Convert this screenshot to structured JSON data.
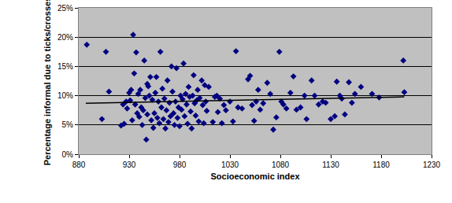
{
  "chart_data": {
    "type": "scatter",
    "xlabel": "Socioeconomic index",
    "ylabel": "Percentage informal due to ticks/crosses",
    "xlim": [
      880,
      1230
    ],
    "xticks": [
      880,
      930,
      980,
      1030,
      1080,
      1130,
      1180,
      1230
    ],
    "ylim": [
      0,
      25
    ],
    "yticks": [
      {
        "value": 0,
        "label": "0%"
      },
      {
        "value": 5,
        "label": "5%"
      },
      {
        "value": 10,
        "label": "10%"
      },
      {
        "value": 15,
        "label": "15%"
      },
      {
        "value": 20,
        "label": "20%"
      },
      {
        "value": 25,
        "label": "25%"
      }
    ],
    "grid": true,
    "series": [
      {
        "type": "scatter",
        "color": "#000080",
        "marker": "diamond",
        "x": [
          888,
          903,
          907,
          910,
          922,
          924,
          925,
          927,
          928,
          930,
          931,
          932,
          933,
          934,
          935,
          936,
          937,
          938,
          939,
          940,
          941,
          942,
          943,
          944,
          945,
          946,
          947,
          948,
          948,
          949,
          950,
          951,
          952,
          953,
          954,
          955,
          956,
          957,
          958,
          959,
          960,
          961,
          962,
          963,
          964,
          965,
          966,
          967,
          968,
          969,
          970,
          971,
          972,
          973,
          974,
          975,
          976,
          977,
          978,
          979,
          980,
          981,
          982,
          983,
          984,
          985,
          986,
          987,
          988,
          989,
          990,
          991,
          992,
          993,
          994,
          995,
          996,
          997,
          998,
          999,
          1000,
          1002,
          1003,
          1004,
          1005,
          1006,
          1007,
          1009,
          1013,
          1015,
          1017,
          1018,
          1020,
          1022,
          1024,
          1026,
          1030,
          1033,
          1036,
          1038,
          1042,
          1048,
          1050,
          1052,
          1054,
          1056,
          1058,
          1060,
          1063,
          1067,
          1070,
          1073,
          1076,
          1079,
          1081,
          1083,
          1086,
          1090,
          1093,
          1096,
          1100,
          1104,
          1106,
          1111,
          1114,
          1118,
          1122,
          1125,
          1130,
          1134,
          1136,
          1139,
          1141,
          1144,
          1148,
          1151,
          1154,
          1160,
          1171,
          1178,
          1202,
          1203
        ],
        "values": [
          18.7,
          6.0,
          17.5,
          10.7,
          4.9,
          8.5,
          5.2,
          9.0,
          7.8,
          10.5,
          9.2,
          11.0,
          5.8,
          20.4,
          13.8,
          8.5,
          17.4,
          7.0,
          10.3,
          6.4,
          11.0,
          8.0,
          5.0,
          7.5,
          16.0,
          9.6,
          2.5,
          12.0,
          6.8,
          11.6,
          10.0,
          13.2,
          5.8,
          9.3,
          4.5,
          7.0,
          10.5,
          13.2,
          6.2,
          9.0,
          5.3,
          17.5,
          8.0,
          11.2,
          6.0,
          9.5,
          4.4,
          7.5,
          12.6,
          5.5,
          8.8,
          6.5,
          15.0,
          10.7,
          7.0,
          5.0,
          9.0,
          14.7,
          6.2,
          8.0,
          4.8,
          10.0,
          7.6,
          9.4,
          15.5,
          6.5,
          10.3,
          8.5,
          5.2,
          11.5,
          9.8,
          7.3,
          4.4,
          10.0,
          13.5,
          8.7,
          6.6,
          9.2,
          11.0,
          5.6,
          9.6,
          12.6,
          8.4,
          5.3,
          11.8,
          9.0,
          7.4,
          11.5,
          5.5,
          9.8,
          10.0,
          7.2,
          9.5,
          5.3,
          8.4,
          7.5,
          9.0,
          5.6,
          17.6,
          8.0,
          7.8,
          12.8,
          13.4,
          8.4,
          5.7,
          9.0,
          11.0,
          7.6,
          8.7,
          12.2,
          10.3,
          4.2,
          6.3,
          17.5,
          9.0,
          8.5,
          7.8,
          10.5,
          13.3,
          7.6,
          8.0,
          10.0,
          6.0,
          12.6,
          10.0,
          8.5,
          9.0,
          8.8,
          6.0,
          6.5,
          12.4,
          10.0,
          9.5,
          6.8,
          12.3,
          8.8,
          10.3,
          11.5,
          10.3,
          9.7,
          16.0,
          10.6
        ]
      },
      {
        "type": "line",
        "color": "#000000",
        "line_style": "solid",
        "x": [
          887,
          1203
        ],
        "values": [
          8.7,
          9.8
        ]
      }
    ]
  }
}
